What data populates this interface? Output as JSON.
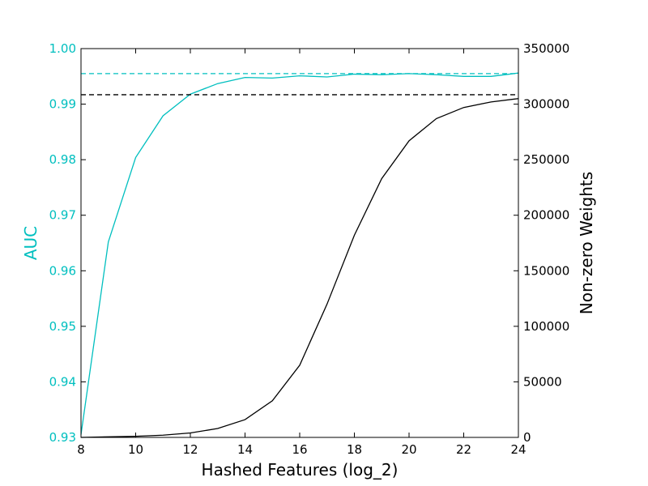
{
  "chart_data": {
    "type": "line",
    "xlabel": "Hashed Features (log_2)",
    "ylabel_left": "AUC",
    "ylabel_right": "Non-zero Weights",
    "xlim": [
      8,
      24
    ],
    "ylim_left": [
      0.93,
      1.0
    ],
    "ylim_right": [
      0,
      350000
    ],
    "x_ticks": [
      8,
      10,
      12,
      14,
      16,
      18,
      20,
      22,
      24
    ],
    "y_ticks_left": [
      "0.93",
      "0.94",
      "0.95",
      "0.96",
      "0.97",
      "0.98",
      "0.99",
      "1.00"
    ],
    "y_ticks_right": [
      "0",
      "50000",
      "100000",
      "150000",
      "200000",
      "250000",
      "300000",
      "350000"
    ],
    "grid": false,
    "colors": {
      "auc": "#00bfbf",
      "weights": "#000000"
    },
    "x": [
      8,
      9,
      10,
      11,
      12,
      13,
      14,
      15,
      16,
      17,
      18,
      19,
      20,
      21,
      22,
      23,
      24
    ],
    "series": [
      {
        "axis": "left",
        "color": "#00bfbf",
        "values": [
          0.9305,
          0.9652,
          0.9804,
          0.9879,
          0.9918,
          0.9937,
          0.9948,
          0.9947,
          0.9951,
          0.9949,
          0.9954,
          0.9953,
          0.9955,
          0.9953,
          0.995,
          0.995,
          0.9956
        ]
      },
      {
        "axis": "right",
        "color": "#000000",
        "values": [
          0,
          500,
          1000,
          2000,
          4000,
          8000,
          16000,
          33000,
          65000,
          120000,
          182000,
          233000,
          267000,
          287000,
          297000,
          302000,
          305000
        ]
      }
    ],
    "reference_lines": [
      {
        "axis": "left",
        "value": 0.9955,
        "style": "dashed",
        "color": "#00bfbf"
      },
      {
        "axis": "right",
        "value": 308500,
        "style": "dashed",
        "color": "#000000"
      }
    ]
  }
}
